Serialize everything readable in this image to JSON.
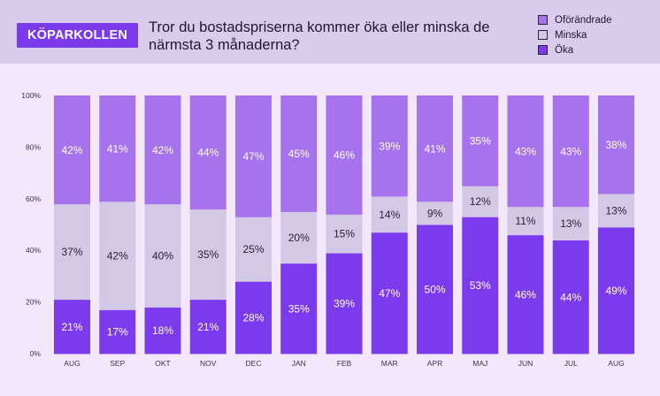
{
  "brand": "KÖPARKOLLEN",
  "question": "Tror du bostadspriserna kommer öka eller minska de närmsta 3 månaderna?",
  "colors": {
    "header_bg": "#d8ccec",
    "brand_bg": "#7c3aed",
    "oforandrade": "#a673ec",
    "minska": "#d3c8e6",
    "oka": "#7c3aed"
  },
  "chart_data": {
    "type": "bar",
    "stacked": true,
    "title": "Tror du bostadspriserna kommer öka eller minska de närmsta 3 månaderna?",
    "xlabel": "",
    "ylabel": "",
    "ylim": [
      0,
      100
    ],
    "yticks": [
      "0%",
      "20%",
      "40%",
      "60%",
      "80%",
      "100%"
    ],
    "categories": [
      "AUG",
      "SEP",
      "OKT",
      "NOV",
      "DEC",
      "JAN",
      "FEB",
      "MAR",
      "APR",
      "MAJ",
      "JUN",
      "JUL",
      "AUG"
    ],
    "legend_position": "top-right",
    "series": [
      {
        "name": "Öka",
        "key": "oka",
        "values": [
          21,
          17,
          18,
          21,
          28,
          35,
          39,
          47,
          50,
          53,
          46,
          44,
          49
        ]
      },
      {
        "name": "Minska",
        "key": "minska",
        "values": [
          37,
          42,
          40,
          35,
          25,
          20,
          15,
          14,
          9,
          12,
          11,
          13,
          13
        ]
      },
      {
        "name": "Oförändrade",
        "key": "oforandrade",
        "values": [
          42,
          41,
          42,
          44,
          47,
          45,
          46,
          39,
          41,
          35,
          43,
          43,
          38
        ]
      }
    ],
    "legend": [
      "Oförändrade",
      "Minska",
      "Öka"
    ]
  }
}
